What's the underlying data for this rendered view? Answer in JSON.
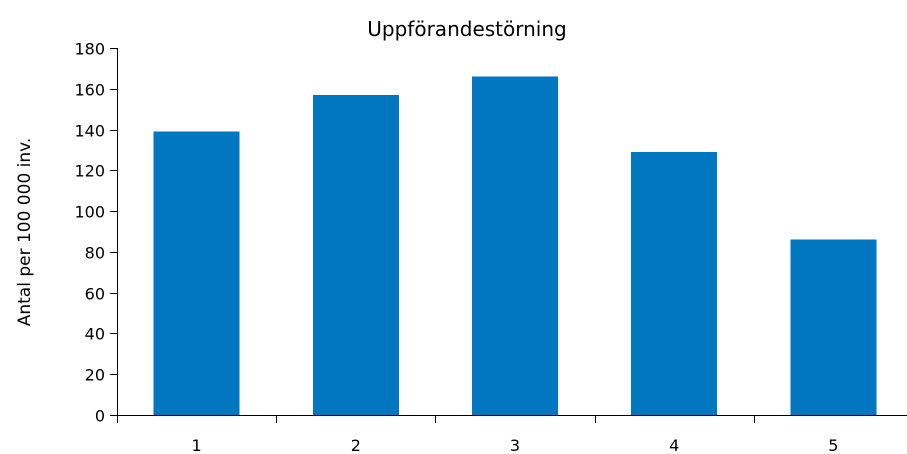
{
  "chart_data": {
    "type": "bar",
    "title": "Uppförandestörning",
    "xlabel": "",
    "ylabel": "Antal per 100 000 inv.",
    "categories": [
      "1",
      "2",
      "3",
      "4",
      "5"
    ],
    "values": [
      139,
      157,
      166,
      129,
      86
    ],
    "ylim": [
      0,
      180
    ],
    "yticks": [
      0,
      20,
      40,
      60,
      80,
      100,
      120,
      140,
      160,
      180
    ],
    "grid": false,
    "legend": "none",
    "bar_color": "#0077C0"
  }
}
